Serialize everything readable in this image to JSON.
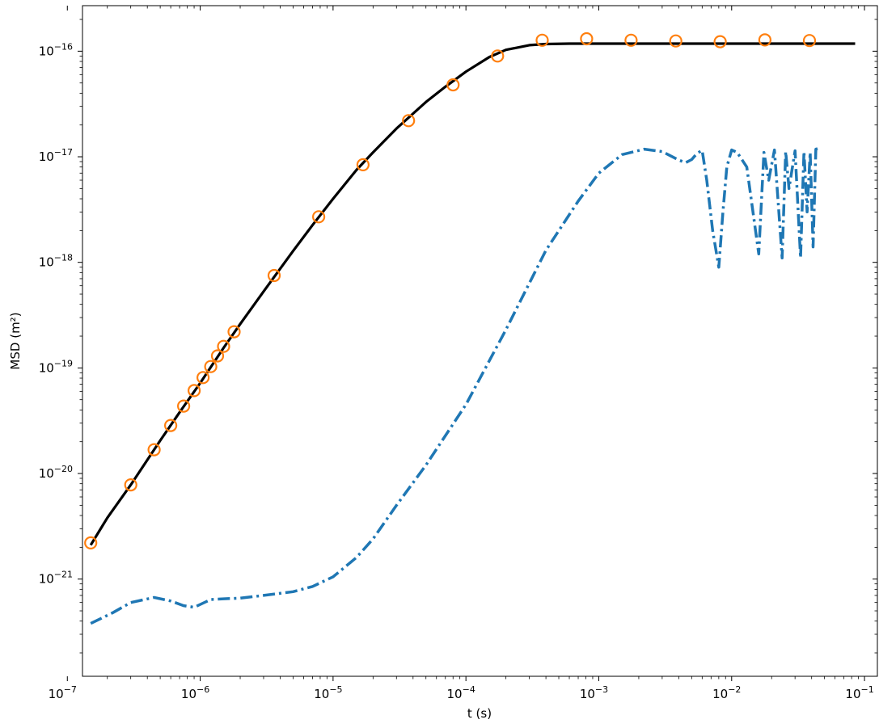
{
  "chart_data": {
    "type": "line",
    "xscale": "log",
    "yscale": "log",
    "xlabel": "t (s)",
    "ylabel": "MSD (m²)",
    "xlim": [
      1.3e-07,
      0.125
    ],
    "ylim": [
      1.2e-22,
      2.7e-16
    ],
    "x_ticks": [
      {
        "value": 1e-07,
        "base": "10",
        "exp": "−7"
      },
      {
        "value": 1e-06,
        "base": "10",
        "exp": "−6"
      },
      {
        "value": 1e-05,
        "base": "10",
        "exp": "−5"
      },
      {
        "value": 0.0001,
        "base": "10",
        "exp": "−4"
      },
      {
        "value": 0.001,
        "base": "10",
        "exp": "−3"
      },
      {
        "value": 0.01,
        "base": "10",
        "exp": "−2"
      },
      {
        "value": 0.1,
        "base": "10",
        "exp": "−1"
      }
    ],
    "y_ticks": [
      {
        "value": 1e-21,
        "base": "10",
        "exp": "−21"
      },
      {
        "value": 1e-20,
        "base": "10",
        "exp": "−20"
      },
      {
        "value": 1e-19,
        "base": "10",
        "exp": "−19"
      },
      {
        "value": 1e-18,
        "base": "10",
        "exp": "−18"
      },
      {
        "value": 1e-17,
        "base": "10",
        "exp": "−17"
      },
      {
        "value": 1e-16,
        "base": "10",
        "exp": "−16"
      }
    ],
    "series": [
      {
        "style": "solid",
        "color": "#000000",
        "x": [
          1.5e-07,
          2e-07,
          3e-07,
          5e-07,
          7e-07,
          1e-06,
          1.5e-06,
          2e-06,
          3e-06,
          5e-06,
          7e-06,
          1e-05,
          1.5e-05,
          2e-05,
          3e-05,
          5e-05,
          7e-05,
          0.0001,
          0.00015,
          0.0002,
          0.0003,
          0.0004,
          0.0006,
          0.001,
          0.003,
          0.01,
          0.03,
          0.085
        ],
        "y": [
          2.1e-21,
          3.8e-21,
          7.8e-21,
          2.05e-20,
          3.8e-20,
          7.2e-20,
          1.55e-19,
          2.6e-19,
          5.3e-19,
          1.28e-18,
          2.25e-18,
          4e-18,
          7.5e-18,
          1.1e-17,
          1.85e-17,
          3.3e-17,
          4.6e-17,
          6.4e-17,
          8.8e-17,
          1.03e-16,
          1.14e-16,
          1.17e-16,
          1.18e-16,
          1.18e-16,
          1.18e-16,
          1.18e-16,
          1.18e-16,
          1.18e-16
        ]
      },
      {
        "style": "markers",
        "marker": "circle",
        "color": "#ff7f0e",
        "x": [
          1.5e-07,
          3e-07,
          4.5e-07,
          6e-07,
          7.5e-07,
          9e-07,
          1.05e-06,
          1.2e-06,
          1.35e-06,
          1.5e-06,
          1.8e-06,
          3.6e-06,
          7.8e-06,
          1.68e-05,
          3.7e-05,
          8e-05,
          0.000173,
          0.000375,
          0.00081,
          0.00175,
          0.0038,
          0.0082,
          0.0178,
          0.0385
        ],
        "y": [
          2.2e-21,
          7.8e-21,
          1.68e-20,
          2.85e-20,
          4.35e-20,
          6.1e-20,
          8.1e-20,
          1.03e-19,
          1.3e-19,
          1.6e-19,
          2.2e-19,
          7.5e-19,
          2.7e-18,
          8.4e-18,
          2.2e-17,
          4.8e-17,
          9e-17,
          1.27e-16,
          1.31e-16,
          1.27e-16,
          1.25e-16,
          1.23e-16,
          1.28e-16,
          1.26e-16
        ]
      },
      {
        "style": "dashdot",
        "color": "#1f77b4",
        "x": [
          1.5e-07,
          2.2e-07,
          3e-07,
          4.5e-07,
          6e-07,
          7.5e-07,
          9e-07,
          1.2e-06,
          1.5e-06,
          2e-06,
          3e-06,
          5e-06,
          7e-06,
          1e-05,
          1.5e-05,
          2e-05,
          3e-05,
          5e-05,
          0.0001,
          0.0002,
          0.0004,
          0.0007,
          0.001,
          0.0015,
          0.0022,
          0.003,
          0.004,
          0.0045,
          0.005,
          0.0055,
          0.006,
          0.0065,
          0.0072,
          0.008,
          0.0086,
          0.0092,
          0.01,
          0.011,
          0.013,
          0.016,
          0.0175,
          0.019,
          0.021,
          0.024,
          0.0255,
          0.027,
          0.03,
          0.033,
          0.035,
          0.037,
          0.039,
          0.041,
          0.043,
          0.045
        ],
        "y": [
          3.8e-22,
          4.8e-22,
          6e-22,
          6.7e-22,
          6.2e-22,
          5.6e-22,
          5.4e-22,
          6.4e-22,
          6.5e-22,
          6.6e-22,
          7e-22,
          7.6e-22,
          8.5e-22,
          1.05e-21,
          1.6e-21,
          2.4e-21,
          5e-21,
          1.2e-20,
          4.5e-20,
          2.3e-19,
          1.3e-18,
          3.8e-18,
          7e-18,
          1.05e-17,
          1.18e-17,
          1.12e-17,
          9.3e-18,
          8.8e-18,
          9.4e-18,
          1.08e-17,
          1.15e-17,
          6e-18,
          2e-18,
          9e-19,
          3e-18,
          8e-18,
          1.16e-17,
          1.1e-17,
          8e-18,
          1.2e-18,
          1.1e-17,
          6e-18,
          1.16e-17,
          1.1e-18,
          1.12e-17,
          5e-18,
          1.14e-17,
          1.1e-18,
          1.12e-17,
          3e-18,
          1.1e-17,
          1.4e-18,
          1.18e-17,
          1.2e-17
        ]
      }
    ]
  }
}
